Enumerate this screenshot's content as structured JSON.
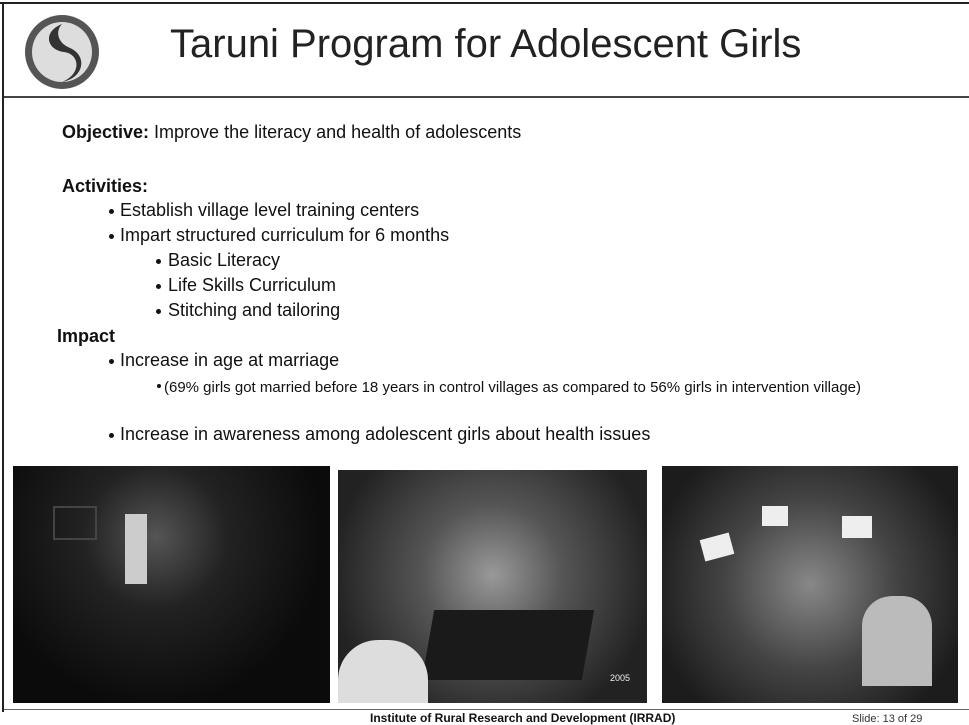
{
  "header": {
    "title": "Taruni Program for Adolescent Girls"
  },
  "objective": {
    "label": "Objective:",
    "text": "Improve the literacy and health of adolescents"
  },
  "activities": {
    "label": "Activities:",
    "items": [
      "Establish village level training centers",
      "Impart structured curriculum for 6 months"
    ],
    "subitems": [
      "Basic Literacy",
      "Life Skills Curriculum",
      "Stitching and tailoring"
    ]
  },
  "impact": {
    "label": "Impact",
    "items": [
      "Increase in age at marriage",
      "Increase in awareness among adolescent girls about health issues"
    ],
    "note": "(69% girls got married before 18 years in control villages as compared to 56% girls in intervention village)"
  },
  "photos": {
    "stamp": "2005"
  },
  "footer": {
    "institute": "Institute of Rural Research and Development (IRRAD)",
    "slide": "Slide: 13 of 29"
  }
}
